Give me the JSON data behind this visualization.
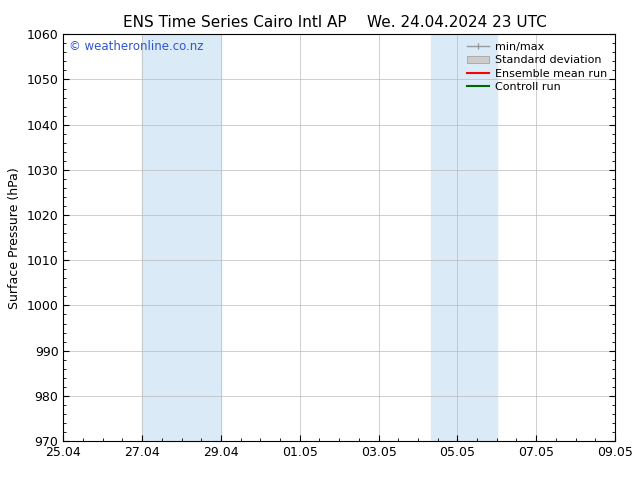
{
  "title_left": "ENS Time Series Cairo Intl AP",
  "title_right": "We. 24.04.2024 23 UTC",
  "ylabel": "Surface Pressure (hPa)",
  "ylim": [
    970,
    1060
  ],
  "yticks": [
    970,
    980,
    990,
    1000,
    1010,
    1020,
    1030,
    1040,
    1050,
    1060
  ],
  "xlabel_ticks": [
    "25.04",
    "27.04",
    "29.04",
    "01.05",
    "03.05",
    "05.05",
    "07.05",
    "09.05"
  ],
  "xtick_positions": [
    0,
    2,
    4,
    6,
    8,
    10,
    12,
    14
  ],
  "watermark": "© weatheronline.co.nz",
  "watermark_color": "#3355cc",
  "shading_regions": [
    {
      "x_start": 2,
      "x_end": 4,
      "color": "#daeaf7"
    },
    {
      "x_start": 9.33,
      "x_end": 11.0,
      "color": "#daeaf7"
    }
  ],
  "bg_color": "#ffffff",
  "grid_color": "#bbbbbb",
  "title_fontsize": 11,
  "ylabel_fontsize": 9,
  "tick_fontsize": 9,
  "legend_fontsize": 8
}
